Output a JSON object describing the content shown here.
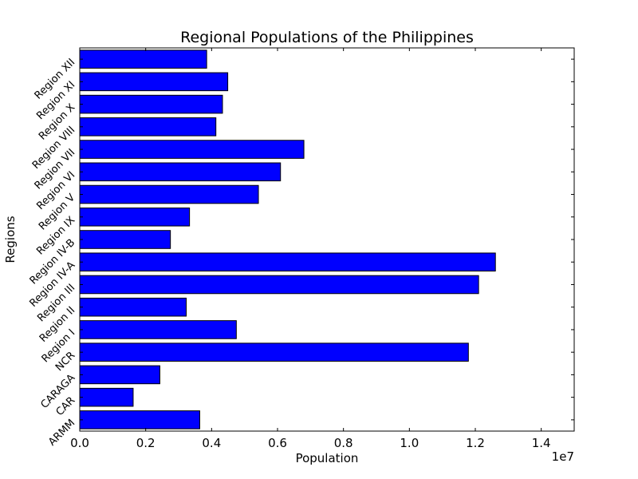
{
  "chart_data": {
    "type": "bar",
    "orientation": "horizontal",
    "title": "Regional Populations of the Philippines",
    "xlabel": "Population",
    "ylabel": "Regions",
    "x_offset_label": "1e7",
    "xlim": [
      0,
      1.5
    ],
    "x_ticks": [
      "0.0",
      "0.2",
      "0.4",
      "0.6",
      "0.8",
      "1.0",
      "1.2",
      "1.4"
    ],
    "categories": [
      "ARMM",
      "CAR",
      "CARAGA",
      "NCR",
      "Region I",
      "Region II",
      "Region III",
      "Region IV-A",
      "Region IV-B",
      "Region IX",
      "Region V",
      "Region VI",
      "Region VII",
      "Region VIII",
      "Region X",
      "Region XI",
      "Region XII"
    ],
    "values": [
      0.364,
      0.162,
      0.243,
      1.179,
      0.475,
      0.323,
      1.21,
      1.261,
      0.275,
      0.333,
      0.542,
      0.609,
      0.68,
      0.413,
      0.433,
      0.449,
      0.385
    ],
    "grid": false,
    "colors": {
      "bar": "#0000ff",
      "edge": "#000000"
    }
  }
}
